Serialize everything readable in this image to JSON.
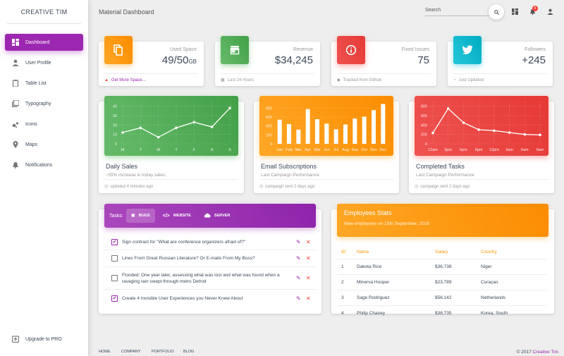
{
  "brand": "CREATIVE TIM",
  "sidebar": {
    "items": [
      {
        "label": "Dashboard",
        "icon": "dashboard-icon",
        "active": true
      },
      {
        "label": "User Profile",
        "icon": "person-icon"
      },
      {
        "label": "Table List",
        "icon": "clipboard-icon"
      },
      {
        "label": "Typography",
        "icon": "library-books-icon"
      },
      {
        "label": "Icons",
        "icon": "bubble-chart-icon"
      },
      {
        "label": "Maps",
        "icon": "location-pin-icon"
      },
      {
        "label": "Notifications",
        "icon": "bell-icon"
      }
    ],
    "upgrade": "Upgrade to PRO"
  },
  "header": {
    "title": "Material Dashboard",
    "search_placeholder": "Search",
    "notification_count": "5"
  },
  "stats": [
    {
      "category": "Used Space",
      "value": "49/50",
      "unit": "GB",
      "footer": "Get More Space...",
      "color": "#ff9800",
      "icon": "content-copy-icon"
    },
    {
      "category": "Revenue",
      "value": "$34,245",
      "unit": "",
      "footer": "Last 24 Hours",
      "color": "#4caf50",
      "icon": "store-icon"
    },
    {
      "category": "Fixed Issues",
      "value": "75",
      "unit": "",
      "footer": "Tracked from Github",
      "color": "#f44336",
      "icon": "info-icon"
    },
    {
      "category": "Followers",
      "value": "+245",
      "unit": "",
      "footer": "Just Updated",
      "color": "#00bcd4",
      "icon": "twitter-icon"
    }
  ],
  "charts": [
    {
      "title": "Daily Sales",
      "subtitle": "55% increase in today sales.",
      "footer": "updated 4 minutes ago",
      "color": "#4caf50"
    },
    {
      "title": "Email Subscriptions",
      "subtitle": "Last Campaign Performance",
      "footer": "campaign sent 2 days ago",
      "color": "#ff9800"
    },
    {
      "title": "Completed Tasks",
      "subtitle": "Last Campaign Performance",
      "footer": "campaign sent 2 days ago",
      "color": "#f44336"
    }
  ],
  "chart_data": [
    {
      "type": "line",
      "categories": [
        "M",
        "T",
        "W",
        "T",
        "F",
        "S",
        "S"
      ],
      "values": [
        12,
        17,
        7,
        17,
        23,
        18,
        38
      ],
      "yticks": [
        0,
        10,
        20,
        30,
        40
      ],
      "ylim": [
        0,
        45
      ],
      "grid": true
    },
    {
      "type": "bar",
      "categories": [
        "Jan",
        "Feb",
        "Mar",
        "Apr",
        "Mai",
        "Jun",
        "Jul",
        "Aug",
        "Sep",
        "Oct",
        "Nov",
        "Dec"
      ],
      "values": [
        542,
        443,
        320,
        780,
        553,
        453,
        326,
        434,
        568,
        610,
        756,
        895
      ],
      "yticks": [
        0,
        200,
        400,
        600,
        800
      ],
      "ylim": [
        0,
        950
      ],
      "grid": true
    },
    {
      "type": "line",
      "categories": [
        "12am",
        "3pm",
        "6pm",
        "9pm",
        "12pm",
        "3am",
        "6am",
        "9am"
      ],
      "values": [
        230,
        750,
        450,
        300,
        280,
        240,
        200,
        190
      ],
      "yticks": [
        0,
        200,
        400,
        600,
        800
      ],
      "ylim": [
        0,
        900
      ],
      "grid": true
    }
  ],
  "tasks": {
    "label": "Tasks:",
    "tabs": [
      "BUGS",
      "WEBSITE",
      "SERVER"
    ],
    "items": [
      {
        "text": "Sign contract for \"What are conference organizers afraid of?\"",
        "checked": true
      },
      {
        "text": "Lines From Great Russian Literature? Or E-mails From My Boss?",
        "checked": false
      },
      {
        "text": "Flooded: One year later, assessing what was lost and what was found when a ravaging rain swept through metro Detroit",
        "checked": false
      },
      {
        "text": "Create 4 Invisible User Experiences you Never Knew About",
        "checked": true
      }
    ]
  },
  "employees": {
    "title": "Employees Stats",
    "subtitle": "New employees on 15th September, 2016",
    "columns": [
      "ID",
      "Name",
      "Salary",
      "Country"
    ],
    "rows": [
      [
        "1",
        "Dakota Rice",
        "$36,738",
        "Niger"
      ],
      [
        "2",
        "Minerva Hooper",
        "$23,789",
        "Curaçao"
      ],
      [
        "3",
        "Sage Rodriguez",
        "$56,142",
        "Netherlands"
      ],
      [
        "4",
        "Philip Chaney",
        "$38,735",
        "Korea, South"
      ]
    ]
  },
  "footer": {
    "links": [
      "HOME",
      "COMPANY",
      "PORTFOLIO",
      "BLOG"
    ],
    "copyright": "© 2017",
    "brand": "Creative Tim"
  }
}
